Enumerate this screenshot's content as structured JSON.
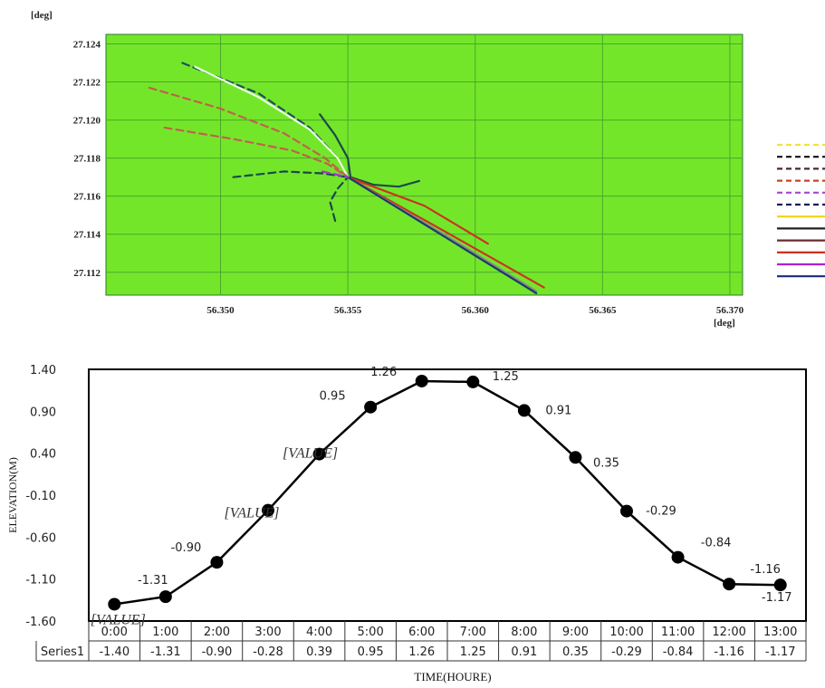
{
  "chart_data": [
    {
      "type": "line",
      "units_label_y": "[deg]",
      "units_label_x": "[deg]",
      "x_ticks": [
        "56.350",
        "56.355",
        "56.360",
        "56.365",
        "56.370"
      ],
      "y_ticks": [
        "27.124",
        "27.122",
        "27.120",
        "27.118",
        "27.116",
        "27.114",
        "27.112"
      ],
      "xlim": [
        56.3455,
        56.3705
      ],
      "ylim": [
        27.1108,
        27.1245
      ],
      "background_color": "#74e62a",
      "grid": true,
      "legend": "right",
      "series": [
        {
          "color": "#1f4f5f",
          "style": "dashed",
          "points": [
            [
              56.3485,
              27.123
            ],
            [
              56.3515,
              27.1214
            ],
            [
              56.3535,
              27.1196
            ],
            [
              56.3546,
              27.118
            ],
            [
              56.355,
              27.117
            ]
          ]
        },
        {
          "color": "#e8ffe0",
          "style": "solid",
          "points": [
            [
              56.349,
              27.1228
            ],
            [
              56.3515,
              27.1212
            ],
            [
              56.3535,
              27.1195
            ],
            [
              56.3546,
              27.118
            ],
            [
              56.355,
              27.117
            ]
          ]
        },
        {
          "color": "#c0624a",
          "style": "dashed",
          "points": [
            [
              56.3472,
              27.1217
            ],
            [
              56.35,
              27.1206
            ],
            [
              56.3525,
              27.1193
            ],
            [
              56.3541,
              27.118
            ],
            [
              56.355,
              27.117
            ]
          ]
        },
        {
          "color": "#c0624a",
          "style": "dashed",
          "points": [
            [
              56.3478,
              27.1196
            ],
            [
              56.3505,
              27.119
            ],
            [
              56.3528,
              27.1184
            ],
            [
              56.3542,
              27.1177
            ],
            [
              56.355,
              27.117
            ]
          ]
        },
        {
          "color": "#1a4a4a",
          "style": "dashed",
          "points": [
            [
              56.3505,
              27.117
            ],
            [
              56.3525,
              27.1173
            ],
            [
              56.354,
              27.1172
            ],
            [
              56.355,
              27.117
            ]
          ]
        },
        {
          "color": "#1a4a4a",
          "style": "dashed",
          "points": [
            [
              56.3545,
              27.1147
            ],
            [
              56.3543,
              27.1157
            ],
            [
              56.3546,
              27.1164
            ],
            [
              56.355,
              27.117
            ]
          ]
        },
        {
          "color": "#1a4a4a",
          "style": "solid",
          "points": [
            [
              56.3539,
              27.1203
            ],
            [
              56.3545,
              27.1192
            ],
            [
              56.355,
              27.118
            ],
            [
              56.3551,
              27.117
            ]
          ]
        },
        {
          "color": "#1a4a4a",
          "style": "solid",
          "points": [
            [
              56.3551,
              27.117
            ],
            [
              56.356,
              27.1166
            ],
            [
              56.357,
              27.1165
            ],
            [
              56.3578,
              27.1168
            ]
          ]
        },
        {
          "color": "#cc3322",
          "style": "solid",
          "points": [
            [
              56.355,
              27.117
            ],
            [
              56.358,
              27.1155
            ],
            [
              56.3605,
              27.1135
            ]
          ]
        },
        {
          "color": "#cc3322",
          "style": "solid",
          "points": [
            [
              56.355,
              27.117
            ],
            [
              56.359,
              27.114
            ],
            [
              56.3627,
              27.1112
            ]
          ]
        },
        {
          "color": "#888888",
          "style": "solid",
          "points": [
            [
              56.355,
              27.117
            ],
            [
              56.359,
              27.1138
            ],
            [
              56.3624,
              27.111
            ]
          ]
        },
        {
          "color": "#1a3a6a",
          "style": "solid",
          "points": [
            [
              56.355,
              27.117
            ],
            [
              56.359,
              27.1137
            ],
            [
              56.3624,
              27.1109
            ]
          ]
        },
        {
          "color": "#aa33cc",
          "style": "dashed",
          "points": [
            [
              56.354,
              27.1173
            ],
            [
              56.355,
              27.117
            ]
          ]
        }
      ],
      "legend_entries": [
        {
          "color": "#f2e040",
          "style": "dashed"
        },
        {
          "color": "#111111",
          "style": "dashed"
        },
        {
          "color": "#4a2a2a",
          "style": "dashed"
        },
        {
          "color": "#cc4422",
          "style": "dashed"
        },
        {
          "color": "#aa44cc",
          "style": "dashed"
        },
        {
          "color": "#1a1a4a",
          "style": "dashed"
        },
        {
          "color": "#f2d400",
          "style": "solid"
        },
        {
          "color": "#222222",
          "style": "solid"
        },
        {
          "color": "#6a2a2a",
          "style": "solid"
        },
        {
          "color": "#cc2211",
          "style": "solid"
        },
        {
          "color": "#aa22cc",
          "style": "solid"
        },
        {
          "color": "#1a2a7a",
          "style": "solid"
        }
      ]
    },
    {
      "type": "line",
      "ylabel": "ELEVATION(M)",
      "xlabel": "TIME(HOURE)",
      "y_ticks": [
        "1.40",
        "0.90",
        "0.40",
        "-0.10",
        "-0.60",
        "-1.10",
        "-1.60"
      ],
      "ylim": [
        -1.6,
        1.4
      ],
      "categories": [
        "0:00",
        "1:00",
        "2:00",
        "3:00",
        "4:00",
        "5:00",
        "6:00",
        "7:00",
        "8:00",
        "9:00",
        "10:00",
        "11:00",
        "12:00",
        "13:00"
      ],
      "series": [
        {
          "name": "Series1",
          "values": [
            -1.4,
            -1.31,
            -0.9,
            -0.28,
            0.39,
            0.95,
            1.26,
            1.25,
            0.91,
            0.35,
            -0.29,
            -0.84,
            -1.16,
            -1.17
          ]
        }
      ],
      "table_values": [
        "-1.40",
        "-1.31",
        "-0.90",
        "-0.28",
        "0.39",
        "0.95",
        "1.26",
        "1.25",
        "0.91",
        "0.35",
        "-0.29",
        "-0.84",
        "-1.16",
        "-1.17"
      ],
      "data_labels": [
        "[VALUE]",
        "-1.31",
        "-0.90",
        "[VALUE]",
        "[VALUE]",
        "0.95",
        "1.26",
        "1.25",
        "0.91",
        "0.35",
        "-0.29",
        "-0.84",
        "-1.16",
        "-1.17"
      ]
    }
  ]
}
